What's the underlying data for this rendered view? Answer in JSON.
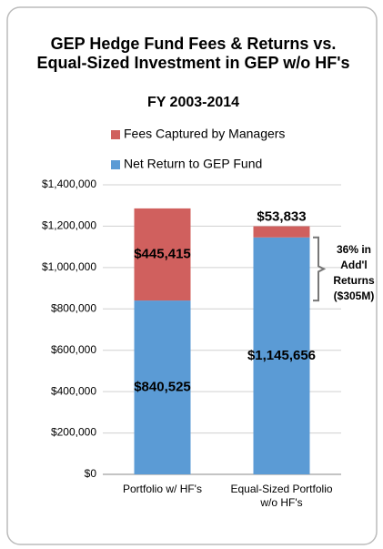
{
  "chart_data": {
    "type": "bar",
    "title": "GEP Hedge Fund Fees & Returns vs. Equal-Sized Investment in GEP w/o HF's",
    "subtitle": "FY 2003-2014",
    "categories": [
      "Portfolio w/ HF's",
      "Equal-Sized Portfolio w/o HF's"
    ],
    "stacked": true,
    "series": [
      {
        "name": "Net Return to GEP Fund",
        "color": "#5b9bd5",
        "values": [
          840525,
          1145656
        ],
        "value_labels": [
          "$840,525",
          "$1,145,656"
        ]
      },
      {
        "name": "Fees Captured by Managers",
        "color": "#d0605e",
        "values": [
          445415,
          53833
        ],
        "value_labels": [
          "$445,415",
          "$53,833"
        ]
      }
    ],
    "ylim": [
      0,
      1400000
    ],
    "yticks": [
      {
        "value": 0,
        "label": "$0"
      },
      {
        "value": 200000,
        "label": "$200,000"
      },
      {
        "value": 400000,
        "label": "$400,000"
      },
      {
        "value": 600000,
        "label": "$600,000"
      },
      {
        "value": 800000,
        "label": "$800,000"
      },
      {
        "value": 1000000,
        "label": "$1,000,000"
      },
      {
        "value": 1200000,
        "label": "$1,200,000"
      },
      {
        "value": 1400000,
        "label": "$1,400,000"
      }
    ],
    "grid": true,
    "annotation": "36% in Add'l Returns ($305M)"
  }
}
